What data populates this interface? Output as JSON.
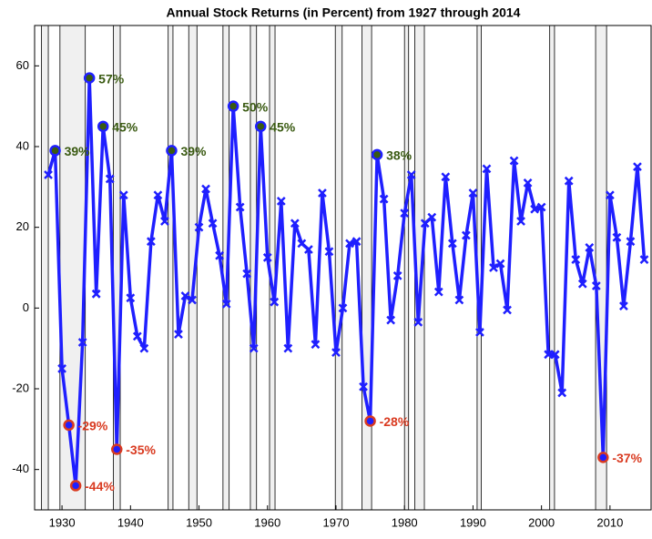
{
  "chart_data": {
    "type": "line",
    "title": "Annual Stock Returns (in Percent) from 1927 through 2014",
    "x": [
      1928,
      1929,
      1930,
      1931,
      1932,
      1933,
      1934,
      1935,
      1936,
      1937,
      1938,
      1939,
      1940,
      1941,
      1942,
      1943,
      1944,
      1945,
      1946,
      1947,
      1948,
      1949,
      1950,
      1951,
      1952,
      1953,
      1954,
      1955,
      1956,
      1957,
      1958,
      1959,
      1960,
      1961,
      1962,
      1963,
      1964,
      1965,
      1966,
      1967,
      1968,
      1969,
      1970,
      1971,
      1972,
      1973,
      1974,
      1975,
      1976,
      1977,
      1978,
      1979,
      1980,
      1981,
      1982,
      1983,
      1984,
      1985,
      1986,
      1987,
      1988,
      1989,
      1990,
      1991,
      1992,
      1993,
      1994,
      1995,
      1996,
      1997,
      1998,
      1999,
      2000,
      2001,
      2002,
      2003,
      2004,
      2005,
      2006,
      2007,
      2008,
      2009,
      2010,
      2011,
      2012,
      2013,
      2014,
      2015
    ],
    "values": [
      33,
      39,
      -15,
      -29,
      -44,
      -8.5,
      57,
      3.5,
      45,
      32,
      -35,
      28,
      2.5,
      -7,
      -10,
      16.5,
      28,
      21.5,
      39,
      -6.5,
      3,
      2,
      20,
      29.5,
      21,
      13,
      1,
      50,
      25,
      8.5,
      -10,
      45,
      12.5,
      1.5,
      26.5,
      -10,
      21,
      16,
      14.5,
      -9,
      28.5,
      14,
      -11,
      0,
      16,
      16.5,
      -19.5,
      -28,
      38,
      27,
      -3,
      8,
      23.5,
      33,
      -3.5,
      21,
      22.5,
      4,
      32.5,
      16,
      2,
      18,
      28.5,
      -6,
      34.5,
      10,
      11,
      -0.5,
      36.5,
      21.5,
      31,
      24.5,
      25,
      -11.5,
      -11.5,
      -21,
      31.5,
      12,
      6,
      15,
      5.5,
      -37,
      28,
      17.5,
      0.5,
      16.5,
      35,
      12
    ],
    "value_labels": [
      null,
      "39%",
      null,
      "-29%",
      "-44%",
      null,
      "57%",
      null,
      "45%",
      null,
      "-35%",
      null,
      null,
      null,
      null,
      null,
      null,
      null,
      "39%",
      null,
      null,
      null,
      null,
      null,
      null,
      null,
      null,
      "50%",
      null,
      null,
      null,
      "45%",
      null,
      null,
      null,
      null,
      null,
      null,
      null,
      null,
      null,
      null,
      null,
      null,
      null,
      null,
      null,
      "-28%",
      "38%",
      null,
      null,
      null,
      null,
      null,
      null,
      null,
      null,
      null,
      null,
      null,
      null,
      null,
      null,
      null,
      null,
      null,
      null,
      null,
      null,
      null,
      null,
      null,
      null,
      null,
      null,
      null,
      null,
      null,
      null,
      null,
      null,
      "-37%",
      null,
      null,
      null,
      null,
      null,
      null
    ],
    "color": "#1f1fff",
    "positive_label_color": "#3a5a12",
    "negative_label_color": "#d93a20",
    "shaded_periods": [
      [
        1927,
        1928
      ],
      [
        1929.7,
        1933.4
      ],
      [
        1937.5,
        1938.5
      ],
      [
        1945.5,
        1946.2
      ],
      [
        1948.5,
        1949.7
      ],
      [
        1953.5,
        1954.4
      ],
      [
        1957.5,
        1958.4
      ],
      [
        1960.3,
        1961.1
      ],
      [
        1969.9,
        1970.9
      ],
      [
        1973.8,
        1975.2
      ],
      [
        1980,
        1980.6
      ],
      [
        1981.5,
        1982.9
      ],
      [
        1990.6,
        1991.2
      ],
      [
        2001.2,
        2001.9
      ],
      [
        2007.9,
        2009.5
      ]
    ],
    "xlim": [
      1926,
      2016
    ],
    "xticks": [
      1930,
      1940,
      1950,
      1960,
      1970,
      1980,
      1990,
      2000,
      2010
    ],
    "ylim": [
      -50,
      70
    ],
    "yticks": [
      -40,
      -20,
      0,
      20,
      40,
      60
    ]
  }
}
